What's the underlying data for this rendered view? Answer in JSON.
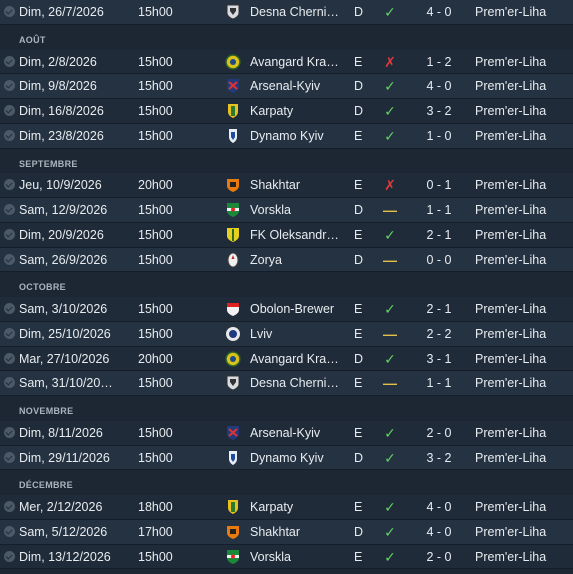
{
  "rows": [
    {
      "type": "match",
      "date": "Dim, 26/7/2026",
      "time": "15h00",
      "crest": "desna-crest",
      "team": "Desna Cherni…",
      "venue": "D",
      "result": "W",
      "score": "4 - 0",
      "comp": "Prem'er-Liha"
    },
    {
      "type": "header",
      "label": "AOÛT"
    },
    {
      "type": "match",
      "date": "Dim, 2/8/2026",
      "time": "15h00",
      "crest": "avangard-crest",
      "team": "Avangard Kra…",
      "venue": "E",
      "result": "L",
      "score": "1 - 2",
      "comp": "Prem'er-Liha"
    },
    {
      "type": "match",
      "date": "Dim, 9/8/2026",
      "time": "15h00",
      "crest": "arsenal-crest",
      "team": "Arsenal-Kyiv",
      "venue": "D",
      "result": "W",
      "score": "4 - 0",
      "comp": "Prem'er-Liha"
    },
    {
      "type": "match",
      "date": "Dim, 16/8/2026",
      "time": "15h00",
      "crest": "karpaty-crest",
      "team": "Karpaty",
      "venue": "D",
      "result": "W",
      "score": "3 - 2",
      "comp": "Prem'er-Liha"
    },
    {
      "type": "match",
      "date": "Dim, 23/8/2026",
      "time": "15h00",
      "crest": "dynamo-crest",
      "team": "Dynamo Kyiv",
      "venue": "E",
      "result": "W",
      "score": "1 - 0",
      "comp": "Prem'er-Liha"
    },
    {
      "type": "header",
      "label": "SEPTEMBRE"
    },
    {
      "type": "match",
      "date": "Jeu, 10/9/2026",
      "time": "20h00",
      "crest": "shakhtar-crest",
      "team": "Shakhtar",
      "venue": "E",
      "result": "L",
      "score": "0 - 1",
      "comp": "Prem'er-Liha"
    },
    {
      "type": "match",
      "date": "Sam, 12/9/2026",
      "time": "15h00",
      "crest": "vorskla-crest",
      "team": "Vorskla",
      "venue": "D",
      "result": "D",
      "score": "1 - 1",
      "comp": "Prem'er-Liha"
    },
    {
      "type": "match",
      "date": "Dim, 20/9/2026",
      "time": "15h00",
      "crest": "oleksandriya-crest",
      "team": "FK Oleksandr…",
      "venue": "E",
      "result": "W",
      "score": "2 - 1",
      "comp": "Prem'er-Liha"
    },
    {
      "type": "match",
      "date": "Sam, 26/9/2026",
      "time": "15h00",
      "crest": "zorya-crest",
      "team": "Zorya",
      "venue": "D",
      "result": "D",
      "score": "0 - 0",
      "comp": "Prem'er-Liha"
    },
    {
      "type": "header",
      "label": "OCTOBRE"
    },
    {
      "type": "match",
      "date": "Sam, 3/10/2026",
      "time": "15h00",
      "crest": "obolon-crest",
      "team": "Obolon-Brewer",
      "venue": "E",
      "result": "W",
      "score": "2 - 1",
      "comp": "Prem'er-Liha"
    },
    {
      "type": "match",
      "date": "Dim, 25/10/2026",
      "time": "15h00",
      "crest": "lviv-crest",
      "team": "Lviv",
      "venue": "E",
      "result": "D",
      "score": "2 - 2",
      "comp": "Prem'er-Liha"
    },
    {
      "type": "match",
      "date": "Mar, 27/10/2026",
      "time": "20h00",
      "crest": "avangard-crest",
      "team": "Avangard Kra…",
      "venue": "D",
      "result": "W",
      "score": "3 - 1",
      "comp": "Prem'er-Liha"
    },
    {
      "type": "match",
      "date": "Sam, 31/10/20…",
      "time": "15h00",
      "crest": "desna-crest",
      "team": "Desna Cherni…",
      "venue": "E",
      "result": "D",
      "score": "1 - 1",
      "comp": "Prem'er-Liha"
    },
    {
      "type": "header",
      "label": "NOVEMBRE"
    },
    {
      "type": "match",
      "date": "Dim, 8/11/2026",
      "time": "15h00",
      "crest": "arsenal-crest",
      "team": "Arsenal-Kyiv",
      "venue": "E",
      "result": "W",
      "score": "2 - 0",
      "comp": "Prem'er-Liha"
    },
    {
      "type": "match",
      "date": "Dim, 29/11/2026",
      "time": "15h00",
      "crest": "dynamo-crest",
      "team": "Dynamo Kyiv",
      "venue": "D",
      "result": "W",
      "score": "3 - 2",
      "comp": "Prem'er-Liha"
    },
    {
      "type": "header",
      "label": "DÉCEMBRE"
    },
    {
      "type": "match",
      "date": "Mer, 2/12/2026",
      "time": "18h00",
      "crest": "karpaty-crest",
      "team": "Karpaty",
      "venue": "E",
      "result": "W",
      "score": "4 - 0",
      "comp": "Prem'er-Liha"
    },
    {
      "type": "match",
      "date": "Sam, 5/12/2026",
      "time": "17h00",
      "crest": "shakhtar-crest",
      "team": "Shakhtar",
      "venue": "D",
      "result": "W",
      "score": "4 - 0",
      "comp": "Prem'er-Liha"
    },
    {
      "type": "match",
      "date": "Dim, 13/12/2026",
      "time": "15h00",
      "crest": "vorskla-crest",
      "team": "Vorskla",
      "venue": "E",
      "result": "W",
      "score": "2 - 0",
      "comp": "Prem'er-Liha"
    }
  ],
  "result_icons": {
    "W": "check-icon",
    "L": "cross-icon",
    "D": "dash-icon"
  },
  "colors": {
    "win": "#5fd35f",
    "loss": "#e23b3b",
    "draw": "#e5c04a",
    "bg": "#1c2733",
    "row_alt": "#243241"
  }
}
